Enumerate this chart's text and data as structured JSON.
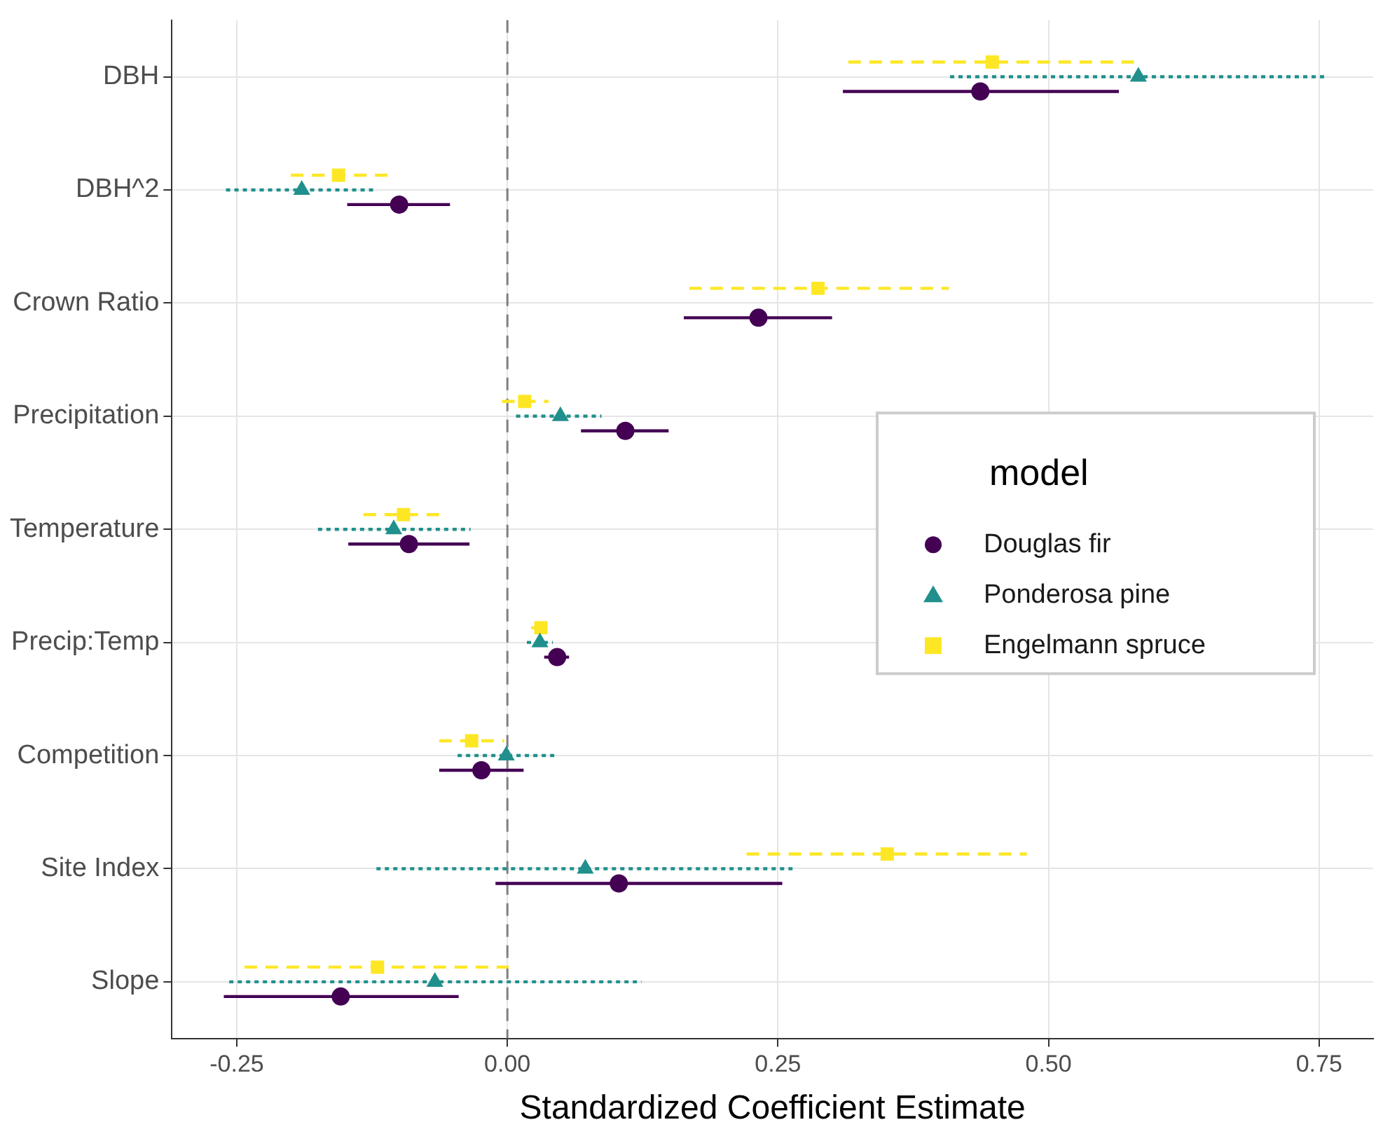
{
  "chart_data": {
    "type": "scatter",
    "orientation": "horizontal",
    "xlabel": "Standardized Coefficient Estimate",
    "categories": [
      "DBH",
      "DBH^2",
      "Crown Ratio",
      "Precipitation",
      "Temperature",
      "Precip:Temp",
      "Competition",
      "Site Index",
      "Slope"
    ],
    "series": [
      {
        "name": "Douglas fir",
        "color": "#440154",
        "marker": "circle",
        "line_style": "solid",
        "values": [
          0.437,
          -0.1,
          0.232,
          0.109,
          -0.091,
          0.046,
          -0.024,
          0.103,
          -0.154
        ],
        "errors": [
          [
            0.31,
            0.565
          ],
          [
            -0.148,
            -0.053
          ],
          [
            0.163,
            0.3
          ],
          [
            0.068,
            0.149
          ],
          [
            -0.147,
            -0.035
          ],
          [
            0.034,
            0.057
          ],
          [
            -0.063,
            0.015
          ],
          [
            -0.011,
            0.254
          ],
          [
            -0.262,
            -0.045
          ]
        ]
      },
      {
        "name": "Ponderosa pine",
        "color": "#21908c",
        "marker": "triangle",
        "line_style": "dotted",
        "values": [
          0.583,
          -0.19,
          null,
          0.049,
          -0.105,
          0.03,
          -0.001,
          0.072,
          -0.067
        ],
        "errors": [
          [
            0.409,
            0.755
          ],
          [
            -0.26,
            -0.124
          ],
          null,
          [
            0.008,
            0.087
          ],
          [
            -0.175,
            -0.034
          ],
          [
            0.018,
            0.042
          ],
          [
            -0.046,
            0.045
          ],
          [
            -0.121,
            0.265
          ],
          [
            -0.257,
            0.124
          ]
        ]
      },
      {
        "name": "Engelmann spruce",
        "color": "#fde725",
        "marker": "square",
        "line_style": "dashed",
        "values": [
          0.448,
          -0.156,
          0.287,
          0.016,
          -0.096,
          0.031,
          -0.033,
          0.351,
          -0.12
        ],
        "errors": [
          [
            0.315,
            0.579
          ],
          [
            -0.2,
            -0.11
          ],
          [
            0.168,
            0.408
          ],
          [
            -0.005,
            0.038
          ],
          [
            -0.133,
            -0.063
          ],
          [
            0.022,
            0.041
          ],
          [
            -0.063,
            -0.003
          ],
          [
            0.221,
            0.48
          ],
          [
            -0.243,
            0.001
          ]
        ]
      }
    ],
    "xlim": [
      -0.31,
      0.8
    ],
    "xticks": [
      {
        "value": -0.25,
        "label": "-0.25"
      },
      {
        "value": 0,
        "label": "0.00"
      },
      {
        "value": 0.25,
        "label": "0.25"
      },
      {
        "value": 0.5,
        "label": "0.50"
      },
      {
        "value": 0.75,
        "label": "0.75"
      }
    ],
    "ref_lines": [
      {
        "axis": "x",
        "value": 0,
        "color": "#7f7f7f",
        "line_style": "dashed"
      }
    ],
    "grid": true,
    "legend": "right",
    "legend_title": "model"
  }
}
